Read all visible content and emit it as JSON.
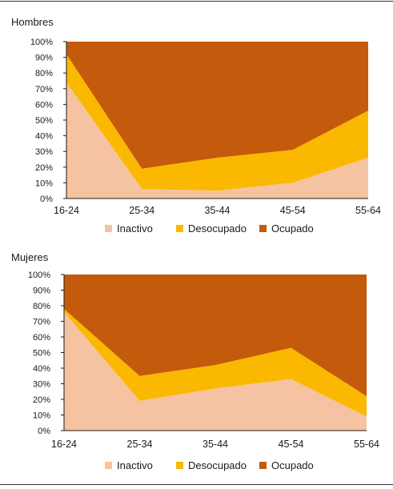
{
  "chart_data": [
    {
      "type": "area",
      "stacked": true,
      "title": "Hombres",
      "categories": [
        "16-24",
        "25-34",
        "35-44",
        "45-54",
        "55-64"
      ],
      "yticks": [
        "0%",
        "10%",
        "20%",
        "30%",
        "40%",
        "50%",
        "60%",
        "70%",
        "80%",
        "90%",
        "100%"
      ],
      "ylim": [
        0,
        100
      ],
      "series": [
        {
          "name": "Inactivo",
          "color": "#f5c3a1",
          "values": [
            74,
            6,
            5,
            10,
            26
          ]
        },
        {
          "name": "Desocupado",
          "color": "#fbb800",
          "values": [
            18,
            13,
            21,
            21,
            30
          ]
        },
        {
          "name": "Ocupado",
          "color": "#c45a0b",
          "values": [
            8,
            81,
            74,
            69,
            44
          ]
        }
      ],
      "legend": "bottom"
    },
    {
      "type": "area",
      "stacked": true,
      "title": "Mujeres",
      "categories": [
        "16-24",
        "25-34",
        "35-44",
        "45-54",
        "55-64"
      ],
      "yticks": [
        "0%",
        "10%",
        "20%",
        "30%",
        "40%",
        "50%",
        "60%",
        "70%",
        "80%",
        "90%",
        "100%"
      ],
      "ylim": [
        0,
        100
      ],
      "series": [
        {
          "name": "Inactivo",
          "color": "#f5c3a1",
          "values": [
            76,
            19,
            27,
            33,
            9
          ]
        },
        {
          "name": "Desocupado",
          "color": "#fbb800",
          "values": [
            2,
            16,
            15,
            20,
            13
          ]
        },
        {
          "name": "Ocupado",
          "color": "#c45a0b",
          "values": [
            22,
            65,
            58,
            47,
            78
          ]
        }
      ],
      "legend": "bottom"
    }
  ]
}
